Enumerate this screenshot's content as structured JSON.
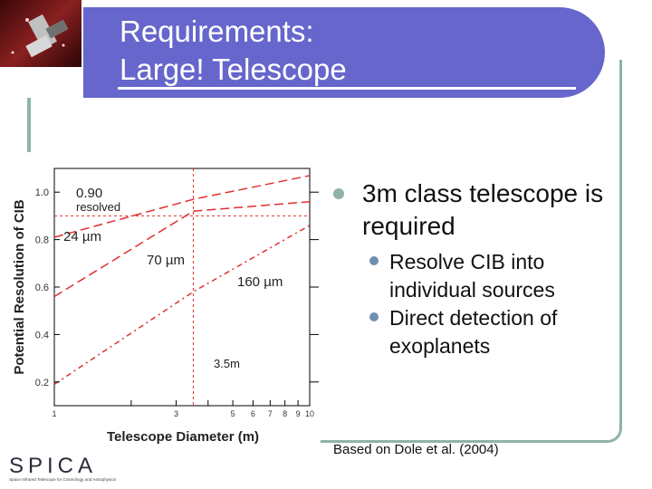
{
  "title": {
    "line1": "Requirements:",
    "line2": "Large! Telescope"
  },
  "bullets": {
    "main": "3m class telescope is required",
    "sub": [
      "Resolve CIB into individual sources",
      "Direct detection of exoplanets"
    ]
  },
  "credit": "Based on Dole et al. (2004)",
  "logo": {
    "text": "SPICA",
    "tagline": "Space Infrared Telescope for Cosmology and Astrophysics"
  },
  "colors": {
    "title_bg": "#6666cc",
    "accent": "#8fb3a8",
    "curve": "#e03030"
  },
  "chart_data": {
    "type": "line",
    "xlabel": "Telescope Diameter (m)",
    "ylabel": "Potential Resolution of CIB",
    "x_scale": "log",
    "xlim": [
      1,
      10
    ],
    "ylim": [
      0.1,
      1.1
    ],
    "x_ticks": [
      1,
      2,
      3,
      4,
      5,
      6,
      7,
      8,
      9,
      10
    ],
    "x_tick_labels": [
      "1",
      "",
      "3",
      "",
      "5",
      "6",
      "7",
      "8",
      "9",
      "10"
    ],
    "y_ticks": [
      0.2,
      0.4,
      0.6,
      0.8,
      1.0
    ],
    "y_tick_labels": [
      "0.2",
      "0.4",
      "0.6",
      "0.8",
      "1.0"
    ],
    "series": [
      {
        "name": "24 µm",
        "x": [
          1,
          3.5,
          10
        ],
        "y": [
          0.81,
          0.97,
          1.07
        ]
      },
      {
        "name": "70 µm",
        "x": [
          1,
          3.5,
          10
        ],
        "y": [
          0.56,
          0.92,
          0.96
        ]
      },
      {
        "name": "160 µm",
        "x": [
          1,
          3.5,
          10
        ],
        "y": [
          0.19,
          0.58,
          0.86
        ]
      }
    ],
    "reference_lines": [
      {
        "axis": "y",
        "value": 0.9,
        "label": "0.90 resolved"
      },
      {
        "axis": "x",
        "value": 3.5,
        "label": "3.5m"
      }
    ]
  }
}
